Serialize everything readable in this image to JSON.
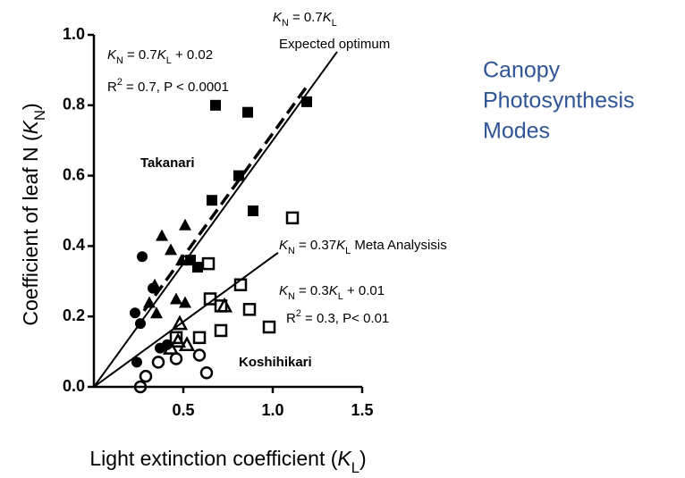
{
  "chart_data": {
    "type": "scatter",
    "side_title": [
      "Canopy",
      "Photosynthesis",
      "Modes"
    ],
    "x_label": [
      {
        "text": "Light extinction coefficient ("
      },
      {
        "text": "K",
        "style": "italic"
      },
      {
        "text": "L",
        "style": "sub"
      },
      {
        "text": ")"
      }
    ],
    "y_label": [
      {
        "text": "Coefficient of leaf N ("
      },
      {
        "text": "K",
        "style": "italic"
      },
      {
        "text": "N",
        "style": "sub"
      },
      {
        "text": ")"
      }
    ],
    "xlim": [
      0,
      1.5
    ],
    "ylim": [
      0,
      1.0
    ],
    "xticks": [
      0.5,
      {
        "value": 1,
        "label": "1.0"
      },
      1.5
    ],
    "yticks": [
      {
        "value": 0,
        "label": "0.0"
      },
      0.2,
      0.4,
      0.6,
      0.8,
      {
        "value": 1,
        "label": "1.0"
      }
    ],
    "series": [
      {
        "marker": "square",
        "filled": true,
        "color": "#000000",
        "x": [
          0.68,
          0.86,
          1.19,
          0.81,
          0.66,
          0.89,
          0.54,
          0.58
        ],
        "y": [
          0.8,
          0.78,
          0.81,
          0.6,
          0.53,
          0.5,
          0.36,
          0.34
        ]
      },
      {
        "marker": "triangle",
        "filled": true,
        "color": "#000000",
        "x": [
          0.38,
          0.51,
          0.43,
          0.49,
          0.34,
          0.35,
          0.46,
          0.51,
          0.31
        ],
        "y": [
          0.43,
          0.46,
          0.39,
          0.36,
          0.29,
          0.21,
          0.25,
          0.24,
          0.24
        ]
      },
      {
        "marker": "circle",
        "filled": true,
        "color": "#000000",
        "x": [
          0.27,
          0.23,
          0.26,
          0.33,
          0.24,
          0.37,
          0.41
        ],
        "y": [
          0.37,
          0.21,
          0.18,
          0.28,
          0.07,
          0.11,
          0.12
        ]
      },
      {
        "marker": "square",
        "filled": false,
        "color": "#000000",
        "x": [
          1.11,
          0.64,
          0.82,
          0.65,
          0.87,
          0.98,
          0.71,
          0.59,
          0.46,
          0.71
        ],
        "y": [
          0.48,
          0.35,
          0.29,
          0.25,
          0.22,
          0.17,
          0.16,
          0.14,
          0.14,
          0.23
        ]
      },
      {
        "marker": "triangle",
        "filled": false,
        "color": "#000000",
        "x": [
          0.48,
          0.43,
          0.47,
          0.52,
          0.73
        ],
        "y": [
          0.18,
          0.11,
          0.13,
          0.12,
          0.23
        ]
      },
      {
        "marker": "circle",
        "filled": false,
        "color": "#000000",
        "x": [
          0.26,
          0.29,
          0.36,
          0.46,
          0.63,
          0.59
        ],
        "y": [
          0.0,
          0.03,
          0.07,
          0.08,
          0.04,
          0.09
        ]
      }
    ],
    "fits": [
      {
        "slope": 0.7,
        "intercept": 0.02,
        "x": [
          0.28,
          1.19
        ],
        "dashed": true
      },
      {
        "slope": 0.7,
        "intercept": 0,
        "x": [
          0,
          1.36
        ],
        "dashed": false
      },
      {
        "slope": 0.37,
        "intercept": 0,
        "x": [
          0,
          1.03
        ],
        "dashed": false
      }
    ],
    "annotations": [
      {
        "parts": [
          {
            "text": "K",
            "style": "italic"
          },
          {
            "text": "N",
            "style": "sub"
          },
          {
            "text": "  = 0.7"
          },
          {
            "text": "K",
            "style": "italic"
          },
          {
            "text": "L",
            "style": "sub"
          },
          {
            "text": " + 0.02"
          }
        ]
      },
      {
        "parts": [
          {
            "text": "R"
          },
          {
            "text": "2",
            "style": "sup"
          },
          {
            "text": " = 0.7, P < 0.0001"
          }
        ]
      },
      {
        "parts": [
          {
            "text": "K",
            "style": "italic"
          },
          {
            "text": "N",
            "style": "sub"
          },
          {
            "text": "  = 0.7"
          },
          {
            "text": "K",
            "style": "italic"
          },
          {
            "text": "L",
            "style": "sub"
          }
        ]
      },
      {
        "parts": [
          {
            "text": "Expected optimum"
          }
        ]
      },
      {
        "parts": [
          {
            "text": "Takanari",
            "style": "bold"
          }
        ]
      },
      {
        "parts": [
          {
            "text": "K",
            "style": "italic"
          },
          {
            "text": "N",
            "style": "sub"
          },
          {
            "text": " = 0.37"
          },
          {
            "text": "K",
            "style": "italic"
          },
          {
            "text": "L",
            "style": "sub"
          },
          {
            "text": "  Meta Analysisis"
          }
        ]
      },
      {
        "parts": [
          {
            "text": "K",
            "style": "italic"
          },
          {
            "text": "N",
            "style": "sub"
          },
          {
            "text": "  = 0.3"
          },
          {
            "text": "K",
            "style": "italic"
          },
          {
            "text": "L",
            "style": "sub"
          },
          {
            "text": " + 0.01"
          }
        ]
      },
      {
        "parts": [
          {
            "text": "R"
          },
          {
            "text": "2",
            "style": "sup"
          },
          {
            "text": " = 0.3, P< 0.01"
          }
        ]
      },
      {
        "parts": [
          {
            "text": "Koshihikari",
            "style": "bold"
          }
        ]
      }
    ]
  }
}
